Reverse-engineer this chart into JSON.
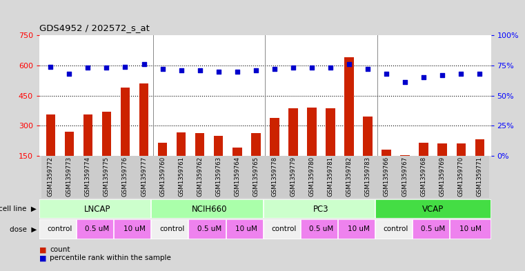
{
  "title": "GDS4952 / 202572_s_at",
  "samples": [
    "GSM1359772",
    "GSM1359773",
    "GSM1359774",
    "GSM1359775",
    "GSM1359776",
    "GSM1359777",
    "GSM1359760",
    "GSM1359761",
    "GSM1359762",
    "GSM1359763",
    "GSM1359764",
    "GSM1359765",
    "GSM1359778",
    "GSM1359779",
    "GSM1359780",
    "GSM1359781",
    "GSM1359782",
    "GSM1359783",
    "GSM1359766",
    "GSM1359767",
    "GSM1359768",
    "GSM1359769",
    "GSM1359770",
    "GSM1359771"
  ],
  "counts": [
    355,
    270,
    355,
    370,
    490,
    510,
    215,
    265,
    262,
    248,
    190,
    262,
    340,
    385,
    390,
    385,
    640,
    345,
    182,
    152,
    215,
    210,
    210,
    232
  ],
  "percentiles": [
    74,
    68,
    73,
    73,
    74,
    76,
    72,
    71,
    71,
    70,
    70,
    71,
    72,
    73,
    73,
    73,
    76,
    72,
    68,
    61,
    65,
    67,
    68,
    68
  ],
  "cell_line_groups": [
    {
      "name": "LNCAP",
      "start": 0,
      "end": 6,
      "color": "#ccffcc"
    },
    {
      "name": "NCIH660",
      "start": 6,
      "end": 12,
      "color": "#aaffaa"
    },
    {
      "name": "PC3",
      "start": 12,
      "end": 18,
      "color": "#ccffcc"
    },
    {
      "name": "VCAP",
      "start": 18,
      "end": 24,
      "color": "#44dd44"
    }
  ],
  "dose_groups": [
    {
      "label": "control",
      "start": 0,
      "end": 2,
      "color": "#f0f0f0"
    },
    {
      "label": "0.5 uM",
      "start": 2,
      "end": 4,
      "color": "#ee82ee"
    },
    {
      "label": "10 uM",
      "start": 4,
      "end": 6,
      "color": "#ee82ee"
    },
    {
      "label": "control",
      "start": 6,
      "end": 8,
      "color": "#f0f0f0"
    },
    {
      "label": "0.5 uM",
      "start": 8,
      "end": 10,
      "color": "#ee82ee"
    },
    {
      "label": "10 uM",
      "start": 10,
      "end": 12,
      "color": "#ee82ee"
    },
    {
      "label": "control",
      "start": 12,
      "end": 14,
      "color": "#f0f0f0"
    },
    {
      "label": "0.5 uM",
      "start": 14,
      "end": 16,
      "color": "#ee82ee"
    },
    {
      "label": "10 uM",
      "start": 16,
      "end": 18,
      "color": "#ee82ee"
    },
    {
      "label": "control",
      "start": 18,
      "end": 20,
      "color": "#f0f0f0"
    },
    {
      "label": "0.5 uM",
      "start": 20,
      "end": 22,
      "color": "#ee82ee"
    },
    {
      "label": "10 uM",
      "start": 22,
      "end": 24,
      "color": "#ee82ee"
    }
  ],
  "ylim_left": [
    150,
    750
  ],
  "ylim_right": [
    0,
    100
  ],
  "yticks_left": [
    150,
    300,
    450,
    600,
    750
  ],
  "yticks_right": [
    0,
    25,
    50,
    75,
    100
  ],
  "hgrid_lines": [
    300,
    450,
    600
  ],
  "bar_color": "#cc2200",
  "dot_color": "#0000cc",
  "background_color": "#d8d8d8",
  "plot_bg_color": "#ffffff",
  "tick_bg_color": "#cccccc"
}
